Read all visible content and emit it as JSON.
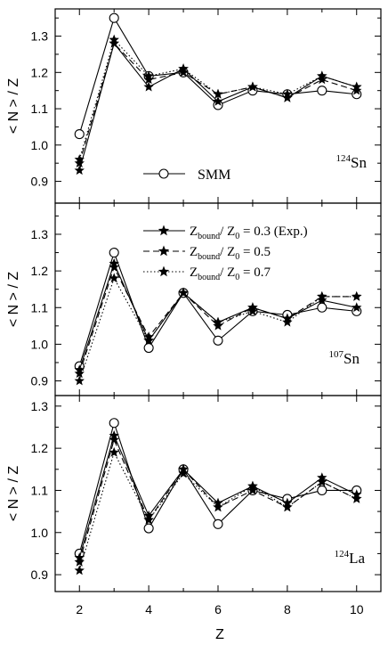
{
  "chart_data": {
    "type": "line",
    "xlabel": "Z",
    "x_ticks": [
      2,
      4,
      6,
      8,
      10
    ],
    "xlim": [
      1.3,
      10.7
    ],
    "shared_x": [
      2,
      3,
      4,
      5,
      6,
      7,
      8,
      9,
      10
    ],
    "legend_entries": {
      "smm": "SMM",
      "series_labels": [
        "Z_bound/ Z_0 = 0.3 (Exp.)",
        "Z_bound/ Z_0 = 0.5",
        "Z_bound/ Z_0 = 0.7"
      ]
    },
    "panels": [
      {
        "ylabel": "< N > / Z",
        "ylim": [
          0.84,
          1.375
        ],
        "yticks": [
          "0.9",
          "1.0",
          "1.1",
          "1.2",
          "1.3"
        ],
        "nucleus": {
          "mass": "124",
          "symbol": "Sn"
        },
        "series": [
          {
            "name": "SMM",
            "marker": "circle",
            "values": [
              1.03,
              1.35,
              1.19,
              1.2,
              1.11,
              1.15,
              1.14,
              1.15,
              1.14
            ]
          },
          {
            "name": "Z_bound/ Z_0 = 0.3 (Exp.)",
            "marker": "star",
            "dash": "solid",
            "values": [
              0.93,
              1.28,
              1.16,
              1.21,
              1.12,
              1.16,
              1.13,
              1.19,
              1.16
            ]
          },
          {
            "name": "Z_bound/ Z_0 = 0.5",
            "marker": "star",
            "dash": "dashed",
            "values": [
              0.95,
              1.28,
              1.18,
              1.2,
              1.14,
              1.16,
              1.13,
              1.18,
              1.15
            ]
          },
          {
            "name": "Z_bound/ Z_0 = 0.7",
            "marker": "star",
            "dash": "dotted",
            "values": [
              0.96,
              1.29,
              1.19,
              1.21,
              1.14,
              1.16,
              1.14,
              1.19,
              1.16
            ]
          }
        ]
      },
      {
        "ylabel": "< N > / Z",
        "ylim": [
          0.86,
          1.385
        ],
        "yticks": [
          "0.9",
          "1.0",
          "1.1",
          "1.2",
          "1.3"
        ],
        "nucleus": {
          "mass": "107",
          "symbol": "Sn"
        },
        "series": [
          {
            "name": "SMM",
            "marker": "circle",
            "values": [
              0.94,
              1.25,
              0.99,
              1.14,
              1.01,
              1.09,
              1.08,
              1.1,
              1.09
            ]
          },
          {
            "name": "Z_bound/ Z_0 = 0.3 (Exp.)",
            "marker": "star",
            "dash": "solid",
            "values": [
              0.93,
              1.22,
              1.01,
              1.14,
              1.06,
              1.1,
              1.07,
              1.12,
              1.1
            ]
          },
          {
            "name": "Z_bound/ Z_0 = 0.5",
            "marker": "star",
            "dash": "dashed",
            "values": [
              0.92,
              1.21,
              1.02,
              1.14,
              1.05,
              1.1,
              1.07,
              1.13,
              1.13
            ]
          },
          {
            "name": "Z_bound/ Z_0 = 0.7",
            "marker": "star",
            "dash": "dotted",
            "values": [
              0.9,
              1.18,
              1.01,
              1.14,
              1.06,
              1.09,
              1.06,
              1.13,
              1.13
            ]
          }
        ]
      },
      {
        "ylabel": "< N > / Z",
        "ylim": [
          0.86,
          1.325
        ],
        "yticks": [
          "0.9",
          "1.0",
          "1.1",
          "1.2",
          "1.3"
        ],
        "nucleus": {
          "mass": "124",
          "symbol": "La"
        },
        "series": [
          {
            "name": "SMM",
            "marker": "circle",
            "values": [
              0.95,
              1.26,
              1.01,
              1.15,
              1.02,
              1.1,
              1.08,
              1.1,
              1.1
            ]
          },
          {
            "name": "Z_bound/ Z_0 = 0.3 (Exp.)",
            "marker": "star",
            "dash": "solid",
            "values": [
              0.94,
              1.23,
              1.04,
              1.15,
              1.07,
              1.11,
              1.07,
              1.13,
              1.09
            ]
          },
          {
            "name": "Z_bound/ Z_0 = 0.5",
            "marker": "star",
            "dash": "dashed",
            "values": [
              0.93,
              1.22,
              1.03,
              1.15,
              1.06,
              1.1,
              1.06,
              1.12,
              1.08
            ]
          },
          {
            "name": "Z_bound/ Z_0 = 0.7",
            "marker": "star",
            "dash": "dotted",
            "values": [
              0.91,
              1.19,
              1.03,
              1.14,
              1.06,
              1.11,
              1.06,
              1.12,
              1.08
            ]
          }
        ]
      }
    ]
  }
}
